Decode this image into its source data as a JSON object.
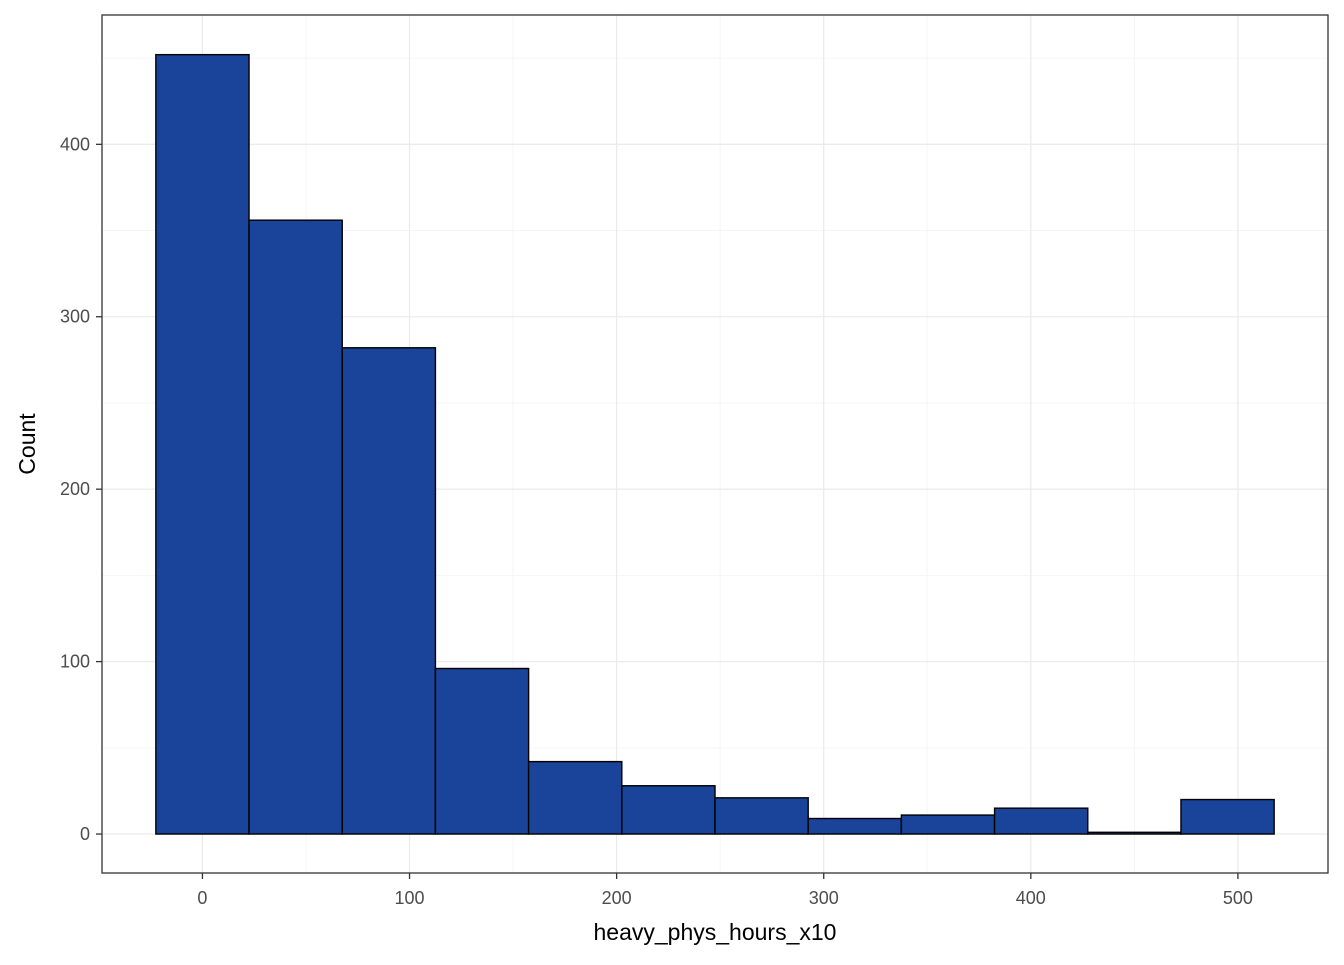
{
  "chart_data": {
    "type": "histogram",
    "xlabel": "heavy_phys_hours_x10",
    "ylabel": "Count",
    "xlim": [
      -48.5,
      543.5
    ],
    "ylim": [
      -22.6,
      475
    ],
    "x_ticks": [
      0,
      100,
      200,
      300,
      400,
      500
    ],
    "x_minor_ticks": [
      50,
      150,
      250,
      350,
      450
    ],
    "y_ticks": [
      0,
      100,
      200,
      300,
      400
    ],
    "y_minor_ticks": [
      50,
      150,
      250,
      350,
      450
    ],
    "bins": [
      {
        "x0": -22.5,
        "x1": 22.5,
        "count": 452
      },
      {
        "x0": 22.5,
        "x1": 67.5,
        "count": 356
      },
      {
        "x0": 67.5,
        "x1": 112.5,
        "count": 282
      },
      {
        "x0": 112.5,
        "x1": 157.5,
        "count": 96
      },
      {
        "x0": 157.5,
        "x1": 202.5,
        "count": 42
      },
      {
        "x0": 202.5,
        "x1": 247.5,
        "count": 28
      },
      {
        "x0": 247.5,
        "x1": 292.5,
        "count": 21
      },
      {
        "x0": 292.5,
        "x1": 337.5,
        "count": 9
      },
      {
        "x0": 337.5,
        "x1": 382.5,
        "count": 11
      },
      {
        "x0": 382.5,
        "x1": 427.5,
        "count": 15
      },
      {
        "x0": 427.5,
        "x1": 472.5,
        "count": 1
      },
      {
        "x0": 472.5,
        "x1": 517.5,
        "count": 20
      }
    ],
    "grid": true,
    "colors": {
      "bar_fill": "#1a4499",
      "bar_stroke": "#000000",
      "grid_major": "#ebebeb",
      "grid_minor": "#f5f5f5",
      "panel_border": "#333333"
    }
  }
}
